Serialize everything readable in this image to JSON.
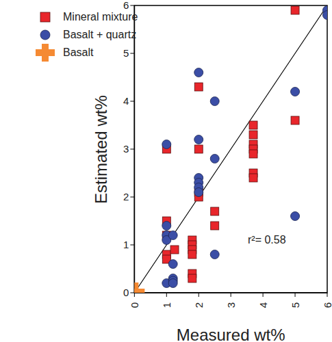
{
  "chart_data": {
    "type": "scatter",
    "x_label": "Measured wt%",
    "y_label": "Estimated wt%",
    "annotations": [
      "r²= 0.58"
    ],
    "xlim": [
      0,
      6
    ],
    "ylim": [
      0,
      6
    ],
    "xticks": [
      0,
      1,
      2,
      3,
      4,
      5,
      6
    ],
    "yticks": [
      0,
      1,
      2,
      3,
      4,
      5,
      6
    ],
    "grid": false,
    "legend": "top-left",
    "line": {
      "x": [
        0,
        6
      ],
      "y": [
        0,
        6
      ]
    },
    "series": [
      {
        "name": "Mineral mixture",
        "color": "#e8262b",
        "marker": "square",
        "x": [
          1,
          1,
          1,
          1,
          1,
          1.25,
          1.8,
          1.8,
          1.8,
          1.8,
          1.8,
          1.8,
          2,
          2,
          2,
          2,
          2.5,
          2.5,
          3.7,
          3.7,
          3.7,
          3.7,
          3.7,
          3.7,
          3.7,
          5,
          5
        ],
        "y": [
          3.0,
          1.5,
          1.2,
          0.8,
          0.7,
          0.9,
          1.1,
          1.0,
          0.9,
          0.8,
          0.4,
          0.3,
          4.3,
          3.0,
          2.1,
          2.0,
          1.7,
          1.4,
          3.5,
          3.3,
          3.1,
          3.0,
          2.9,
          2.5,
          2.4,
          5.9,
          3.6
        ]
      },
      {
        "name": "Basalt + quartz",
        "color": "#3b4ea6",
        "marker": "circle",
        "x": [
          1,
          1,
          1,
          1,
          1,
          1.2,
          1.2,
          1.2,
          1.2,
          1.2,
          2,
          2,
          2,
          2,
          2,
          2,
          2.5,
          2.5,
          2.5,
          5,
          5,
          6,
          6
        ],
        "y": [
          3.1,
          1.4,
          1.2,
          1.1,
          0.2,
          1.2,
          0.6,
          0.3,
          0.25,
          0.2,
          4.6,
          3.2,
          2.4,
          2.3,
          2.2,
          2.1,
          4.0,
          2.8,
          0.8,
          4.2,
          1.6,
          5.9,
          5.8
        ]
      },
      {
        "name": "Basalt",
        "color": "#f58a33",
        "marker": "cross",
        "x": [
          0
        ],
        "y": [
          0
        ]
      }
    ]
  }
}
